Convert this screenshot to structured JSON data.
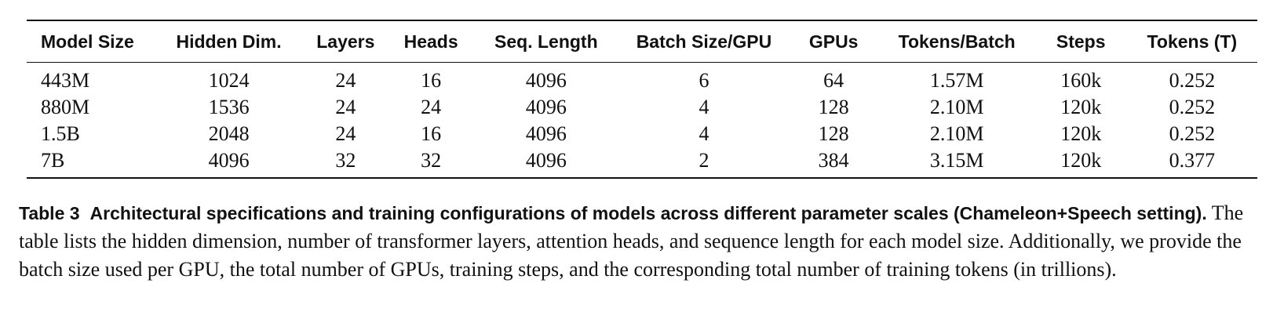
{
  "table": {
    "columns": [
      "Model Size",
      "Hidden Dim.",
      "Layers",
      "Heads",
      "Seq. Length",
      "Batch Size/GPU",
      "GPUs",
      "Tokens/Batch",
      "Steps",
      "Tokens (T)"
    ],
    "rows": [
      [
        "443M",
        "1024",
        "24",
        "16",
        "4096",
        "6",
        "64",
        "1.57M",
        "160k",
        "0.252"
      ],
      [
        "880M",
        "1536",
        "24",
        "24",
        "4096",
        "4",
        "128",
        "2.10M",
        "120k",
        "0.252"
      ],
      [
        "1.5B",
        "2048",
        "24",
        "16",
        "4096",
        "4",
        "128",
        "2.10M",
        "120k",
        "0.252"
      ],
      [
        "7B",
        "4096",
        "32",
        "32",
        "4096",
        "2",
        "384",
        "3.15M",
        "120k",
        "0.377"
      ]
    ]
  },
  "caption": {
    "label": "Table 3",
    "title": "Architectural specifications and training configurations of models across different parameter scales (Chameleon+Speech setting).",
    "body": "The table lists the hidden dimension, number of transformer layers, attention heads, and sequence length for each model size. Additionally, we provide the batch size used per GPU, the total number of GPUs, training steps, and the corresponding total number of training tokens (in trillions)."
  }
}
